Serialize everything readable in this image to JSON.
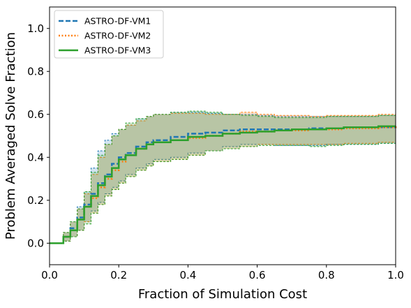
{
  "chart_data": {
    "type": "line",
    "xlabel": "Fraction of Simulation Cost",
    "ylabel": "Problem Averaged Solve Fraction",
    "xlim": [
      0.0,
      1.0
    ],
    "ylim": [
      -0.1,
      1.1
    ],
    "x_ticks": [
      "0.0",
      "0.2",
      "0.4",
      "0.6",
      "0.8",
      "1.0"
    ],
    "y_ticks": [
      "0.0",
      "0.2",
      "0.4",
      "0.6",
      "0.8",
      "1.0"
    ],
    "legend_position": "upper-left",
    "series": [
      {
        "name": "ASTRO-DF-VM1",
        "color": "#1f77b4",
        "style": "dashed",
        "x": [
          0.0,
          0.02,
          0.04,
          0.06,
          0.08,
          0.1,
          0.12,
          0.14,
          0.16,
          0.18,
          0.2,
          0.22,
          0.25,
          0.28,
          0.3,
          0.35,
          0.4,
          0.45,
          0.5,
          0.55,
          0.6,
          0.65,
          0.7,
          0.75,
          0.8,
          0.85,
          0.9,
          0.95,
          1.0
        ],
        "y": [
          0.0,
          0.0,
          0.03,
          0.07,
          0.12,
          0.18,
          0.23,
          0.28,
          0.32,
          0.37,
          0.4,
          0.42,
          0.45,
          0.47,
          0.48,
          0.495,
          0.51,
          0.515,
          0.525,
          0.53,
          0.53,
          0.53,
          0.53,
          0.535,
          0.535,
          0.54,
          0.54,
          0.54,
          0.545
        ],
        "upper": [
          0.0,
          0.0,
          0.05,
          0.1,
          0.17,
          0.24,
          0.35,
          0.43,
          0.48,
          0.51,
          0.53,
          0.55,
          0.58,
          0.59,
          0.6,
          0.61,
          0.61,
          0.605,
          0.6,
          0.6,
          0.595,
          0.59,
          0.59,
          0.59,
          0.59,
          0.59,
          0.59,
          0.595,
          0.595
        ],
        "lower": [
          0.0,
          0.0,
          0.01,
          0.03,
          0.06,
          0.1,
          0.15,
          0.19,
          0.23,
          0.26,
          0.29,
          0.32,
          0.35,
          0.37,
          0.39,
          0.4,
          0.42,
          0.43,
          0.45,
          0.46,
          0.46,
          0.455,
          0.455,
          0.455,
          0.46,
          0.46,
          0.46,
          0.465,
          0.465
        ]
      },
      {
        "name": "ASTRO-DF-VM2",
        "color": "#ff7f0e",
        "style": "dotted",
        "x": [
          0.0,
          0.02,
          0.04,
          0.06,
          0.08,
          0.1,
          0.12,
          0.14,
          0.16,
          0.18,
          0.2,
          0.22,
          0.25,
          0.28,
          0.3,
          0.35,
          0.4,
          0.45,
          0.5,
          0.55,
          0.6,
          0.65,
          0.7,
          0.75,
          0.8,
          0.85,
          0.9,
          0.95,
          1.0
        ],
        "y": [
          0.0,
          0.0,
          0.03,
          0.06,
          0.11,
          0.17,
          0.21,
          0.26,
          0.3,
          0.34,
          0.38,
          0.41,
          0.44,
          0.46,
          0.47,
          0.48,
          0.49,
          0.5,
          0.51,
          0.52,
          0.52,
          0.525,
          0.525,
          0.53,
          0.53,
          0.535,
          0.535,
          0.54,
          0.545
        ],
        "upper": [
          0.0,
          0.0,
          0.05,
          0.1,
          0.16,
          0.23,
          0.32,
          0.4,
          0.46,
          0.5,
          0.53,
          0.55,
          0.57,
          0.59,
          0.6,
          0.605,
          0.605,
          0.6,
          0.6,
          0.61,
          0.6,
          0.595,
          0.595,
          0.59,
          0.595,
          0.595,
          0.595,
          0.6,
          0.6
        ],
        "lower": [
          0.0,
          0.0,
          0.01,
          0.03,
          0.06,
          0.1,
          0.14,
          0.18,
          0.22,
          0.25,
          0.28,
          0.31,
          0.34,
          0.36,
          0.38,
          0.39,
          0.41,
          0.43,
          0.44,
          0.45,
          0.46,
          0.46,
          0.46,
          0.46,
          0.46,
          0.465,
          0.465,
          0.47,
          0.47
        ]
      },
      {
        "name": "ASTRO-DF-VM3",
        "color": "#2ca02c",
        "style": "solid",
        "x": [
          0.0,
          0.02,
          0.04,
          0.06,
          0.08,
          0.1,
          0.12,
          0.14,
          0.16,
          0.18,
          0.2,
          0.22,
          0.25,
          0.28,
          0.3,
          0.35,
          0.4,
          0.45,
          0.5,
          0.55,
          0.6,
          0.65,
          0.7,
          0.75,
          0.8,
          0.85,
          0.9,
          0.95,
          1.0
        ],
        "y": [
          0.0,
          0.0,
          0.03,
          0.06,
          0.11,
          0.17,
          0.22,
          0.27,
          0.31,
          0.35,
          0.39,
          0.41,
          0.44,
          0.46,
          0.47,
          0.48,
          0.495,
          0.5,
          0.51,
          0.515,
          0.52,
          0.525,
          0.53,
          0.53,
          0.535,
          0.54,
          0.54,
          0.545,
          0.545
        ],
        "upper": [
          0.0,
          0.0,
          0.05,
          0.1,
          0.16,
          0.24,
          0.33,
          0.41,
          0.46,
          0.5,
          0.53,
          0.56,
          0.58,
          0.59,
          0.6,
          0.61,
          0.615,
          0.61,
          0.6,
          0.595,
          0.59,
          0.585,
          0.585,
          0.585,
          0.59,
          0.59,
          0.59,
          0.595,
          0.6
        ],
        "lower": [
          0.0,
          0.0,
          0.01,
          0.03,
          0.06,
          0.09,
          0.14,
          0.18,
          0.22,
          0.25,
          0.28,
          0.31,
          0.34,
          0.36,
          0.38,
          0.39,
          0.41,
          0.43,
          0.44,
          0.45,
          0.455,
          0.455,
          0.455,
          0.45,
          0.455,
          0.46,
          0.46,
          0.465,
          0.465
        ]
      }
    ]
  }
}
